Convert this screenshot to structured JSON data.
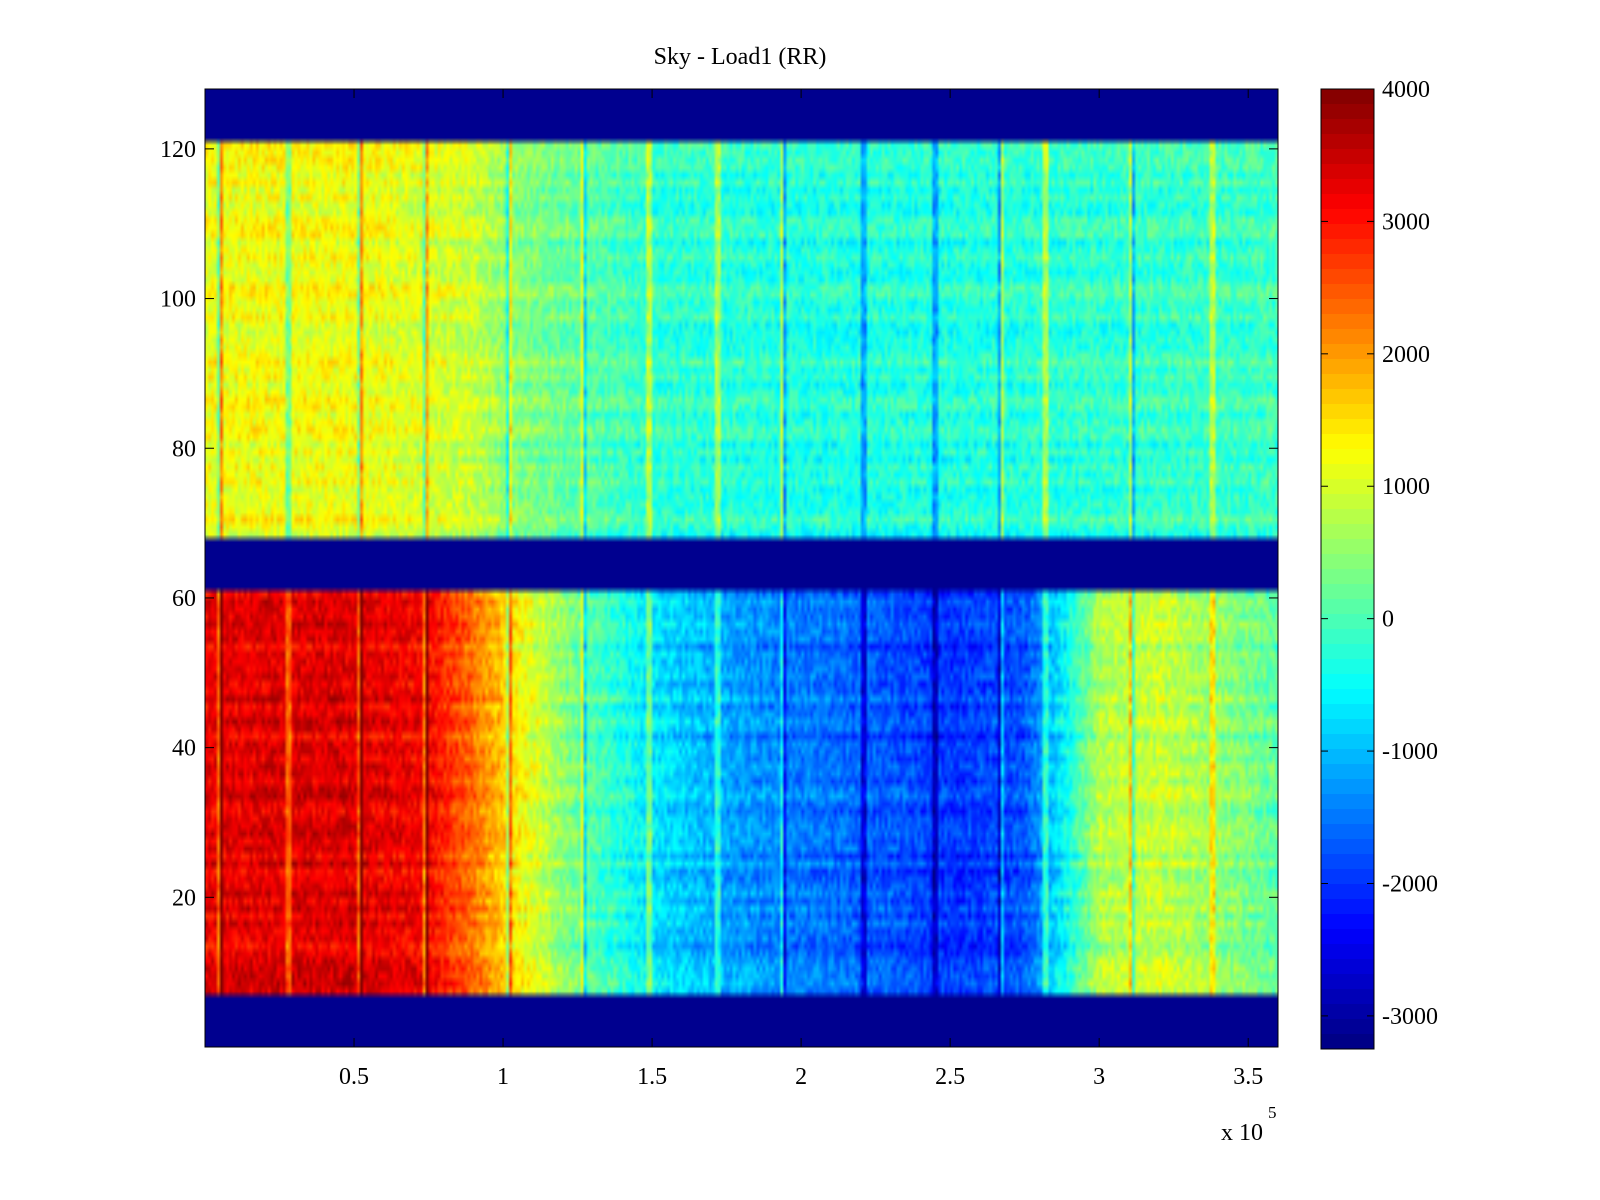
{
  "chart_data": {
    "type": "heatmap",
    "title": "Sky - Load1 (RR)",
    "xlabel": "",
    "ylabel": "",
    "x_multiplier_label": "x 10",
    "x_multiplier_exponent": "5",
    "xlim": [
      0,
      3.6
    ],
    "ylim": [
      0,
      128
    ],
    "x_ticks": [
      0.5,
      1,
      1.5,
      2,
      2.5,
      3,
      3.5
    ],
    "x_tick_labels": [
      "0.5",
      "1",
      "1.5",
      "2",
      "2.5",
      "3",
      "3.5"
    ],
    "y_ticks": [
      20,
      40,
      60,
      80,
      100,
      120
    ],
    "y_tick_labels": [
      "20",
      "40",
      "60",
      "80",
      "100",
      "120"
    ],
    "colorbar": {
      "colormap": "jet",
      "clim": [
        -3250,
        4000
      ],
      "ticks": [
        4000,
        3000,
        2000,
        1000,
        0,
        -1000,
        -2000,
        -3000
      ],
      "tick_labels": [
        "4000",
        "3000",
        "2000",
        "1000",
        "0",
        "-1000",
        "-2000",
        "-3000"
      ]
    },
    "masked_value": -3250,
    "masked_rows": [
      [
        0,
        7
      ],
      [
        61,
        68
      ],
      [
        121,
        128
      ]
    ],
    "data_regions": [
      {
        "rows": [
          7,
          61
        ],
        "description_profile_x": [
          0,
          0.25,
          0.5,
          0.75,
          0.9,
          1.0,
          1.25,
          1.5,
          1.75,
          2.0,
          2.25,
          2.5,
          2.75,
          2.9,
          3.0,
          3.2,
          3.4,
          3.6
        ],
        "profile_values": [
          3200,
          3300,
          3300,
          3100,
          2300,
          1600,
          200,
          -700,
          -1200,
          -1500,
          -1700,
          -2000,
          -1800,
          -400,
          700,
          900,
          500,
          100
        ]
      },
      {
        "rows": [
          68,
          121
        ],
        "description_profile_x": [
          0,
          0.5,
          0.9,
          1.0,
          1.5,
          2.0,
          2.5,
          3.0,
          3.6
        ],
        "profile_values": [
          1200,
          1200,
          900,
          500,
          -200,
          -300,
          -300,
          -200,
          -100
        ]
      }
    ],
    "vertical_streaks_x": [
      0.05,
      0.28,
      0.52,
      0.74,
      1.02,
      1.27,
      1.49,
      1.72,
      1.94,
      2.21,
      2.45,
      2.67,
      2.82,
      3.11,
      3.38
    ],
    "grid": false
  },
  "colors": {
    "masked": "#00008f",
    "axis": "#000000",
    "background": "#ffffff"
  }
}
